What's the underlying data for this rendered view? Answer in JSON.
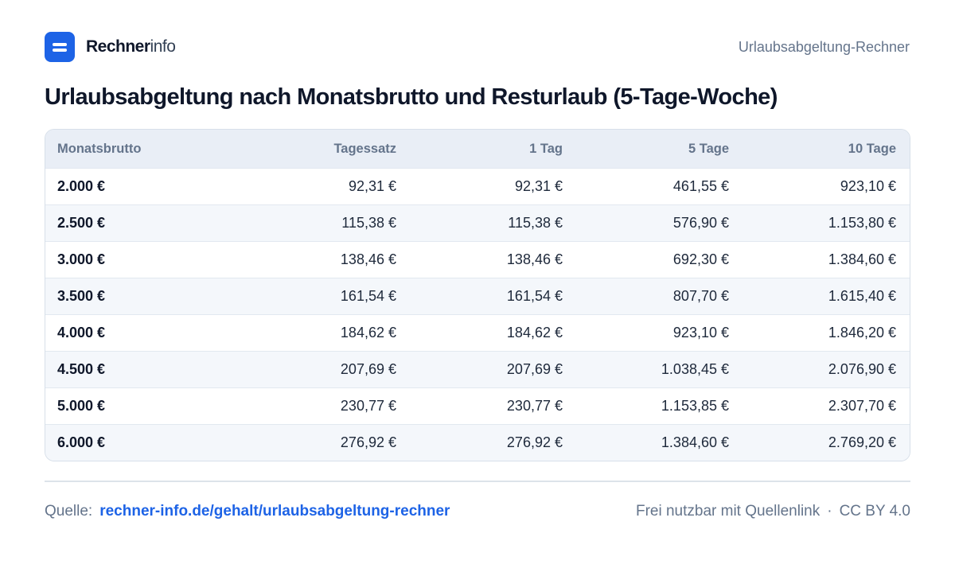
{
  "brand": {
    "name_strong": "Rechner",
    "name_light": "info"
  },
  "header": {
    "right_label": "Urlaubsabgeltung-Rechner"
  },
  "title": "Urlaubsabgeltung nach Monatsbrutto und Resturlaub (5-Tage-Woche)",
  "table": {
    "columns": [
      "Monatsbrutto",
      "Tagessatz",
      "1 Tag",
      "5 Tage",
      "10 Tage"
    ],
    "rows": [
      [
        "2.000 €",
        "92,31 €",
        "92,31 €",
        "461,55 €",
        "923,10 €"
      ],
      [
        "2.500 €",
        "115,38 €",
        "115,38 €",
        "576,90 €",
        "1.153,80 €"
      ],
      [
        "3.000 €",
        "138,46 €",
        "138,46 €",
        "692,30 €",
        "1.384,60 €"
      ],
      [
        "3.500 €",
        "161,54 €",
        "161,54 €",
        "807,70 €",
        "1.615,40 €"
      ],
      [
        "4.000 €",
        "184,62 €",
        "184,62 €",
        "923,10 €",
        "1.846,20 €"
      ],
      [
        "4.500 €",
        "207,69 €",
        "207,69 €",
        "1.038,45 €",
        "2.076,90 €"
      ],
      [
        "5.000 €",
        "230,77 €",
        "230,77 €",
        "1.153,85 €",
        "2.307,70 €"
      ],
      [
        "6.000 €",
        "276,92 €",
        "276,92 €",
        "1.384,60 €",
        "2.769,20 €"
      ]
    ]
  },
  "footer": {
    "source_label": "Quelle:",
    "source_link": "rechner-info.de/gehalt/urlaubsabgeltung-rechner",
    "usage": "Frei nutzbar mit Quellenlink",
    "separator": "·",
    "license": "CC BY 4.0"
  },
  "colors": {
    "brand": "#1d63e6",
    "text": "#0f172a",
    "muted": "#64748b",
    "header_bg": "#e9eef6",
    "alt_row_bg": "#f4f7fb"
  },
  "icons": {
    "logo": "logo-icon"
  }
}
